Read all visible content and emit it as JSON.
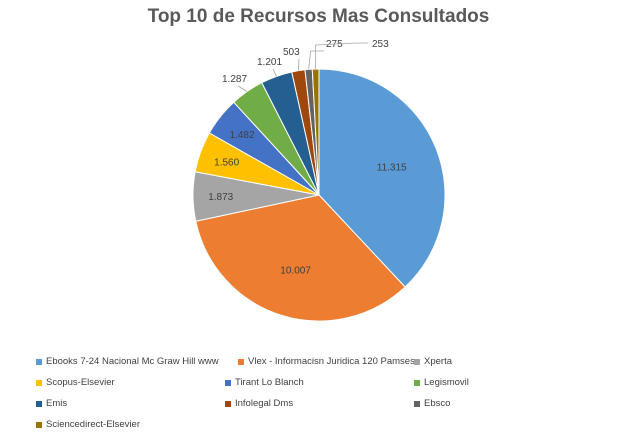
{
  "chart_data": {
    "type": "pie",
    "title": "Top 10 de Recursos Mas Consultados",
    "slices": [
      {
        "name": "Ebooks 7-24 Nacional Mc Graw Hill www",
        "value": 11315,
        "label": "11.315",
        "color": "#5b9bd5"
      },
      {
        "name": "Vlex - Informacisn Juridica 120 Pamses",
        "value": 10007,
        "label": "10.007",
        "color": "#ed7d31"
      },
      {
        "name": "Xperta",
        "value": 1873,
        "label": "1.873",
        "color": "#a5a5a5"
      },
      {
        "name": "Scopus-Elsevier",
        "value": 1560,
        "label": "1.560",
        "color": "#ffc000"
      },
      {
        "name": "Tirant Lo Blanch",
        "value": 1482,
        "label": "1.482",
        "color": "#4472c4"
      },
      {
        "name": "Legismovil",
        "value": 1287,
        "label": "1.287",
        "color": "#70ad47"
      },
      {
        "name": "Emis",
        "value": 1201,
        "label": "1.201",
        "color": "#255e91"
      },
      {
        "name": "Infolegal Dms",
        "value": 503,
        "label": "503",
        "color": "#9e480e"
      },
      {
        "name": "Ebsco",
        "value": 275,
        "label": "275",
        "color": "#636363"
      },
      {
        "name": "Sciencedirect-Elsevier",
        "value": 253,
        "label": "253",
        "color": "#997300"
      }
    ],
    "legend_position": "bottom"
  }
}
